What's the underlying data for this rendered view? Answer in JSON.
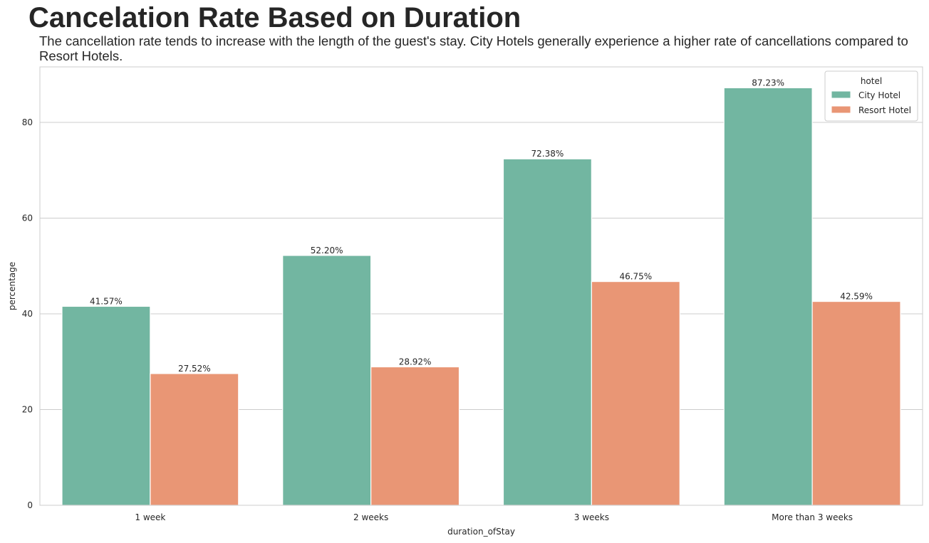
{
  "chart_data": {
    "type": "bar",
    "title": "Cancelation Rate Based on Duration",
    "subtitle": "The cancellation rate tends to increase with the length of the guest's stay. City Hotels generally experience a higher rate of cancellations compared to Resort Hotels.",
    "xlabel": "duration_ofStay",
    "ylabel": "percentage",
    "categories": [
      "1 week",
      "2 weeks",
      "3 weeks",
      "More than 3 weeks"
    ],
    "ylim": [
      0,
      92
    ],
    "yticks": [
      0,
      20,
      40,
      60,
      80
    ],
    "grid": "y",
    "legend_position": "top-right",
    "legend_title": "hotel",
    "series": [
      {
        "name": "City Hotel",
        "color": "#72b6a1",
        "values": [
          41.57,
          52.2,
          72.38,
          87.23
        ],
        "labels": [
          "41.57%",
          "52.20%",
          "72.38%",
          "87.23%"
        ]
      },
      {
        "name": "Resort Hotel",
        "color": "#e99675",
        "values": [
          27.52,
          28.92,
          46.75,
          42.59
        ],
        "labels": [
          "27.52%",
          "28.92%",
          "46.75%",
          "42.59%"
        ]
      }
    ]
  }
}
